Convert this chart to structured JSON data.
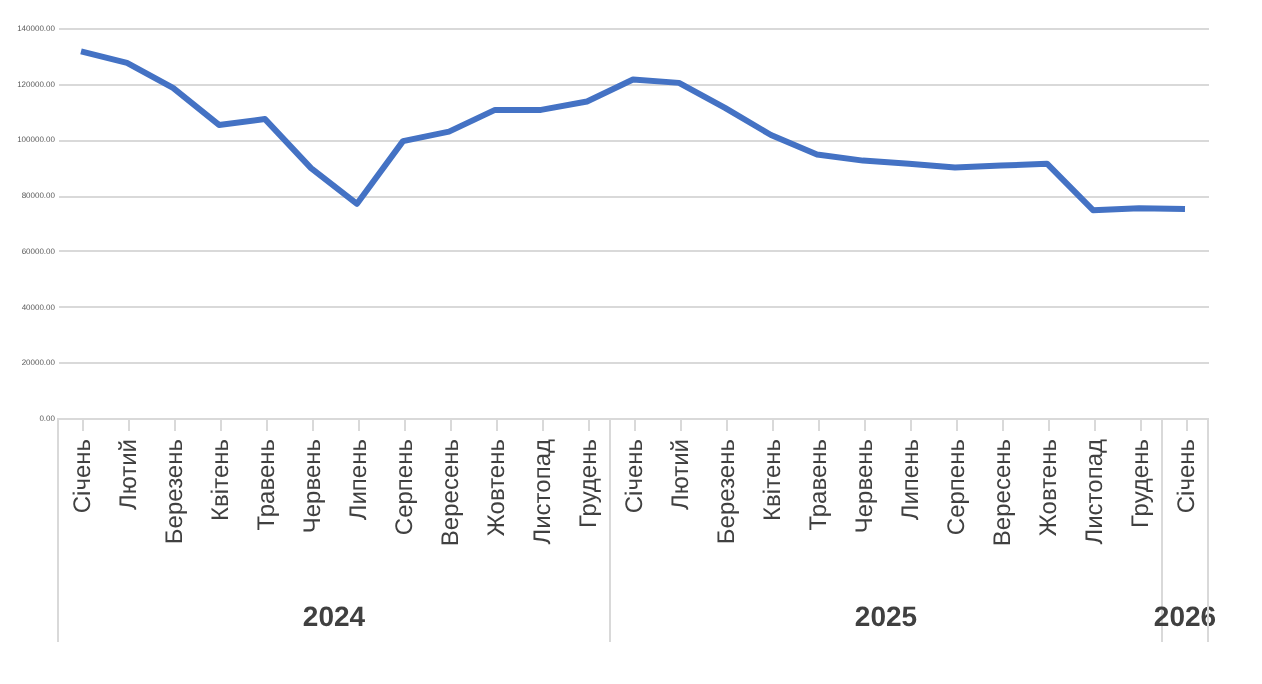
{
  "chart_data": {
    "type": "line",
    "categories": [
      "Січень",
      "Лютий",
      "Березень",
      "Квітень",
      "Травень",
      "Червень",
      "Липень",
      "Серпень",
      "Вересень",
      "Жовтень",
      "Листопад",
      "Грудень",
      "Січень",
      "Лютий",
      "Березень",
      "Квітень",
      "Травень",
      "Червень",
      "Липень",
      "Серпень",
      "Вересень",
      "Жовтень",
      "Листопад",
      "Грудень",
      "Січень"
    ],
    "series": [
      {
        "color": "#4472c4",
        "values": [
          131600,
          127500,
          118500,
          105200,
          107300,
          89700,
          76900,
          99400,
          102800,
          110600,
          110600,
          113600,
          121500,
          120300,
          111300,
          101600,
          94600,
          92400,
          91300,
          89900,
          90600,
          91300,
          74600,
          75300,
          75000
        ]
      }
    ],
    "ylim": [
      0,
      140000
    ],
    "yticks": [
      {
        "value": 0,
        "label": "0.00"
      },
      {
        "value": 20000,
        "label": "20000.00"
      },
      {
        "value": 40000,
        "label": "40000.00"
      },
      {
        "value": 60000,
        "label": "60000.00"
      },
      {
        "value": 80000,
        "label": "80000.00"
      },
      {
        "value": 100000,
        "label": "100000.00"
      },
      {
        "value": 120000,
        "label": "120000.00"
      },
      {
        "value": 140000,
        "label": "140000.00"
      }
    ],
    "annotations": [
      "2024",
      "2025",
      "2026"
    ],
    "grid": "y",
    "marker": "none",
    "line_style": "solid"
  }
}
